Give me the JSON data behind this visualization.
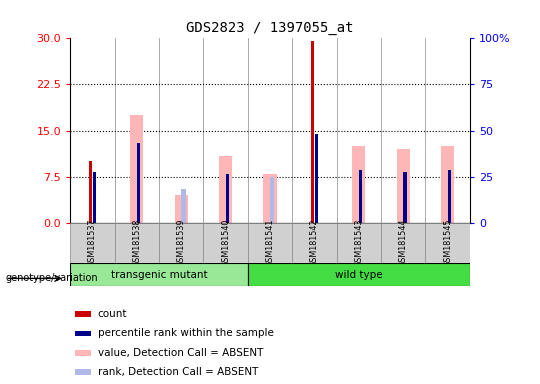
{
  "title": "GDS2823 / 1397055_at",
  "samples": [
    "GSM181537",
    "GSM181538",
    "GSM181539",
    "GSM181540",
    "GSM181541",
    "GSM181542",
    "GSM181543",
    "GSM181544",
    "GSM181545"
  ],
  "count_values": [
    10.0,
    null,
    null,
    null,
    null,
    29.5,
    null,
    null,
    null
  ],
  "rank_values": [
    8.2,
    13.0,
    null,
    8.0,
    null,
    14.5,
    8.5,
    8.2,
    8.5
  ],
  "absent_value_values": [
    null,
    17.5,
    4.5,
    10.8,
    8.0,
    null,
    12.5,
    12.0,
    12.5
  ],
  "absent_rank_values": [
    null,
    null,
    5.5,
    null,
    7.5,
    null,
    null,
    null,
    null
  ],
  "ylim_left": [
    0,
    30
  ],
  "ylim_right": [
    0,
    100
  ],
  "yticks_left": [
    0,
    7.5,
    15,
    22.5,
    30
  ],
  "yticks_right": [
    0,
    25,
    50,
    75,
    100
  ],
  "color_count": "#cc0000",
  "color_rank": "#00008B",
  "color_absent_value": "#ffb6b6",
  "color_absent_rank": "#b0b8e8",
  "background_color": "#ffffff",
  "group_transgenic_color": "#98e898",
  "group_wildtype_color": "#44dd44",
  "legend_items": [
    {
      "label": "count",
      "color": "#cc0000"
    },
    {
      "label": "percentile rank within the sample",
      "color": "#00008B"
    },
    {
      "label": "value, Detection Call = ABSENT",
      "color": "#ffb6b6"
    },
    {
      "label": "rank, Detection Call = ABSENT",
      "color": "#b0b8e8"
    }
  ]
}
